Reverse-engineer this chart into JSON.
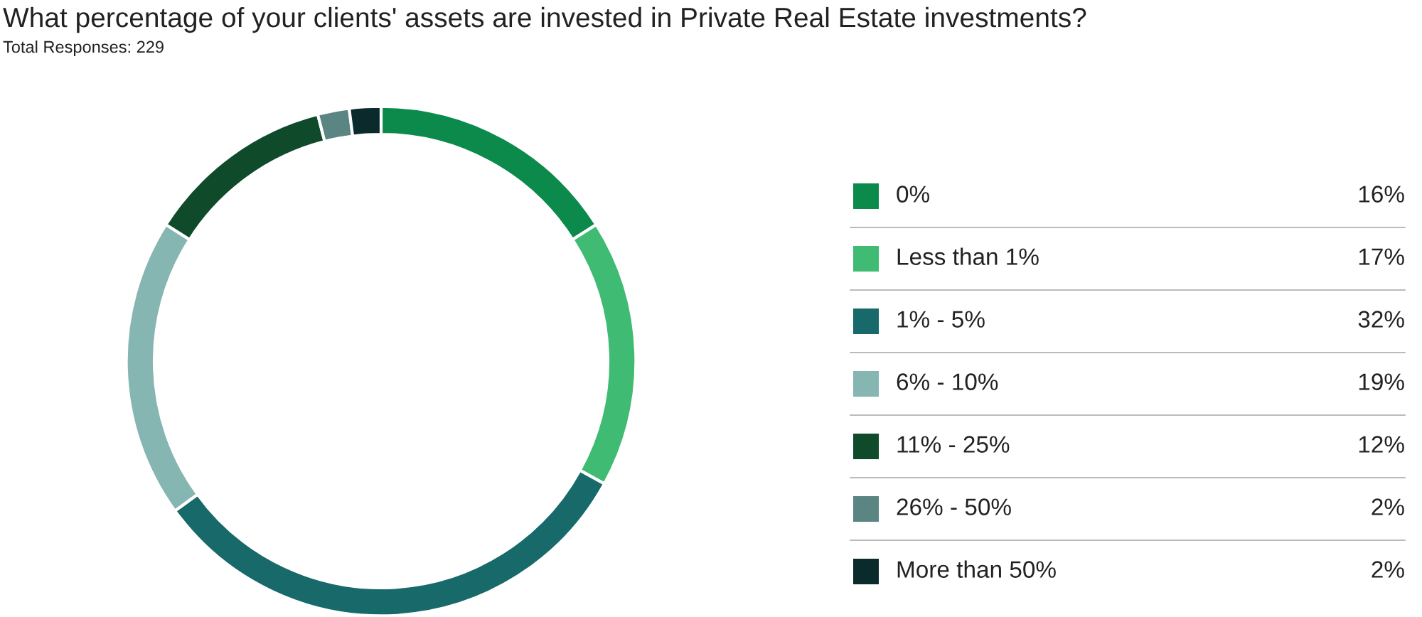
{
  "chart_data": {
    "type": "donut",
    "title": "What percentage of your clients' assets are invested in Private Real Estate investments?",
    "subtitle": "Total Responses: 229",
    "categories": [
      "0%",
      "Less than 1%",
      "1% - 5%",
      "6% - 10%",
      "11% - 25%",
      "26% - 50%",
      "More than 50%"
    ],
    "values": [
      16,
      17,
      32,
      19,
      12,
      2,
      2
    ],
    "value_labels": [
      "16%",
      "17%",
      "32%",
      "19%",
      "12%",
      "2%",
      "2%"
    ],
    "colors": [
      "#0b8a4c",
      "#3fbb73",
      "#17696a",
      "#86b6b2",
      "#0f4b2b",
      "#5b8582",
      "#0b2a2c"
    ],
    "legend": "right"
  }
}
